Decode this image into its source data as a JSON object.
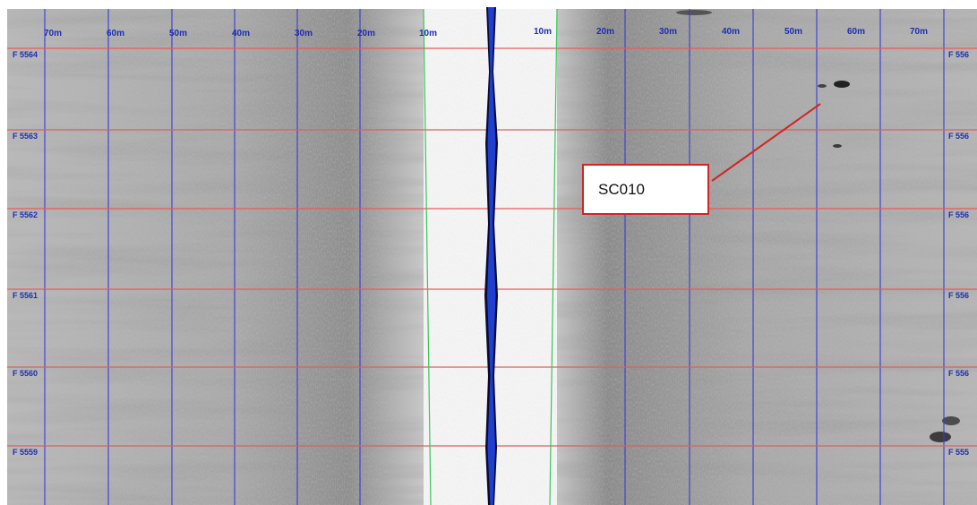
{
  "image": {
    "type": "side-scan sonar record",
    "colors": {
      "background": "#ffffff",
      "seabed_light": "#d2d2d2",
      "seabed_dark": "#7e7e7e",
      "nadir_channel": "#f4f4f4",
      "nadir_line": "#1f3fd1",
      "range_line": "#3a3ad8",
      "fix_line": "#e25d5d",
      "nadir_guide": "#3cc45a",
      "label_blue": "#1e2fb0",
      "callout_border": "#d42424"
    }
  },
  "range_labels": {
    "port": [
      "70m",
      "60m",
      "50m",
      "40m",
      "30m",
      "20m",
      "10m"
    ],
    "starboard": [
      "10m",
      "20m",
      "30m",
      "40m",
      "50m",
      "60m",
      "70m"
    ]
  },
  "fix_labels": {
    "port": [
      "F 5564",
      "F 5563",
      "F 5562",
      "F 5561",
      "F 5560",
      "F 5559"
    ],
    "starboard": [
      "F 556",
      "F 556",
      "F 556",
      "F 556",
      "F 556",
      "F 555"
    ]
  },
  "callout": {
    "label": "SC010"
  }
}
